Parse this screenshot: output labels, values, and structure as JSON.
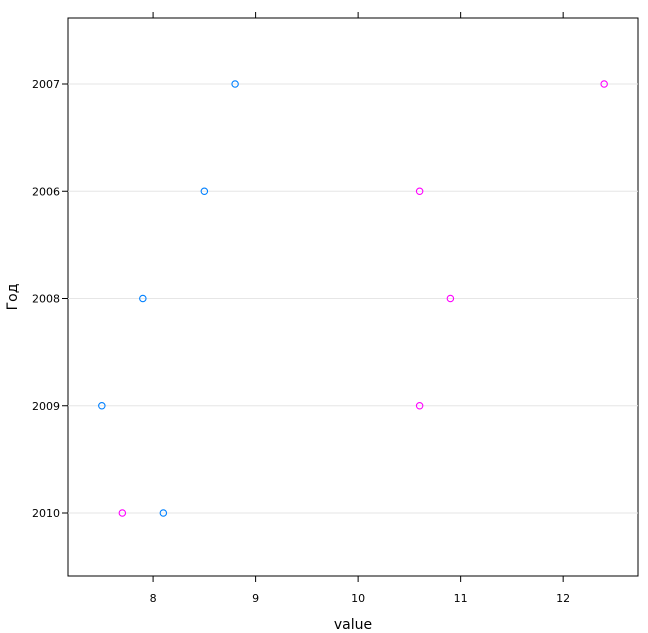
{
  "chart_data": {
    "type": "scatter",
    "title": "",
    "xlabel": "value",
    "ylabel": "Год",
    "xlim": [
      7.17,
      12.73
    ],
    "x_ticks": [
      "8",
      "9",
      "10",
      "11",
      "12"
    ],
    "categories": [
      "2010",
      "2009",
      "2008",
      "2006",
      "2007"
    ],
    "grid": "horizontal lines at categories",
    "legend": "none",
    "series": [
      {
        "color": "#0080ff",
        "points": [
          {
            "y": "2007",
            "x": 8.8
          },
          {
            "y": "2006",
            "x": 8.5
          },
          {
            "y": "2008",
            "x": 7.9
          },
          {
            "y": "2009",
            "x": 7.5
          },
          {
            "y": "2010",
            "x": 8.1
          }
        ]
      },
      {
        "color": "#ff00ff",
        "points": [
          {
            "y": "2007",
            "x": 12.4
          },
          {
            "y": "2006",
            "x": 10.6
          },
          {
            "y": "2008",
            "x": 10.9
          },
          {
            "y": "2009",
            "x": 10.6
          },
          {
            "y": "2010",
            "x": 7.7
          }
        ]
      }
    ]
  }
}
